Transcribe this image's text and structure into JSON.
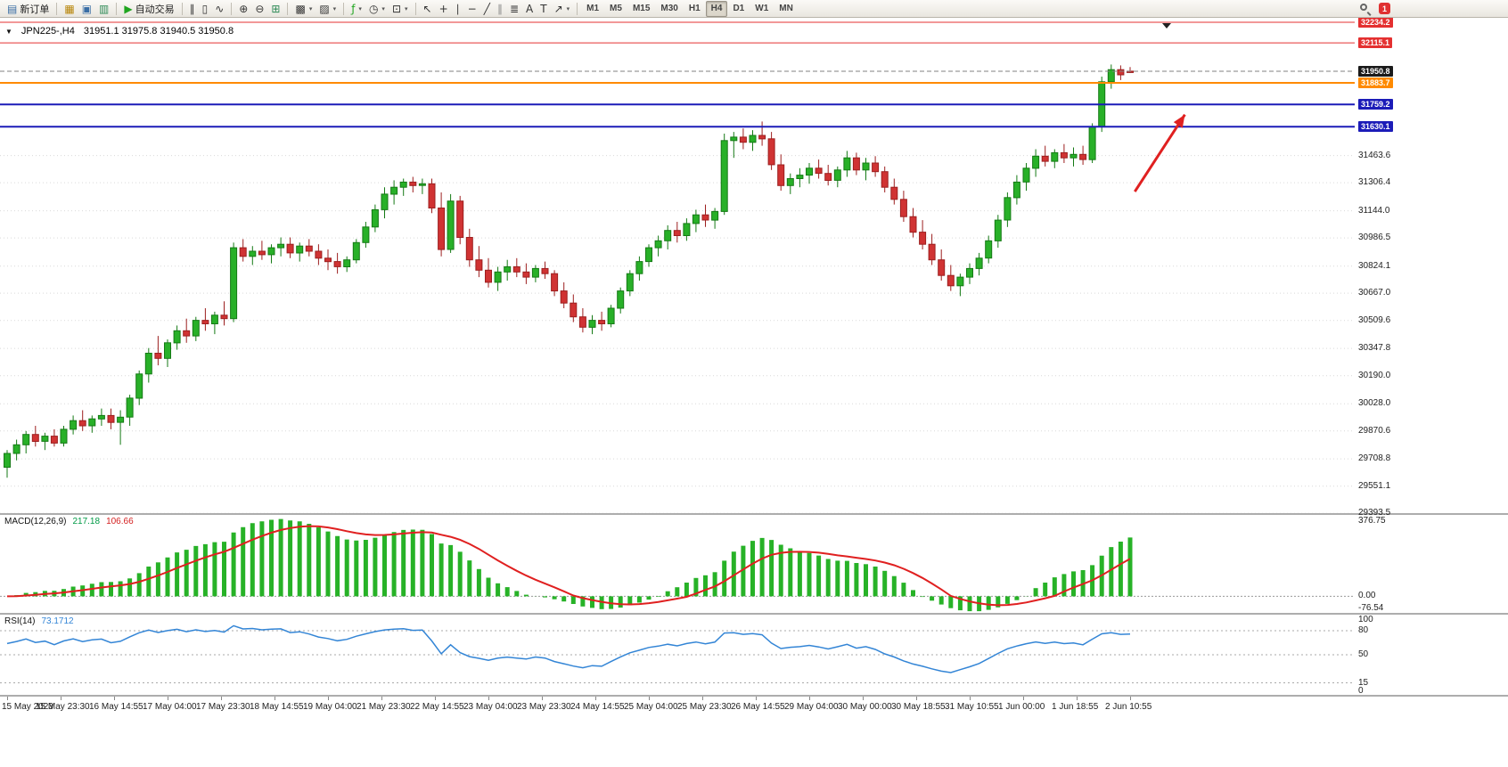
{
  "toolbar": {
    "notification_badge": "1",
    "groups": [
      {
        "name": "trade",
        "items": [
          {
            "name": "new-order-button",
            "glyph": "▤",
            "glyph_color": "#3a6ea5",
            "label": "新订单"
          }
        ]
      },
      {
        "name": "windows",
        "items": [
          {
            "name": "charts-button",
            "glyph": "▦",
            "glyph_color": "#b8860b"
          },
          {
            "name": "profiles-button",
            "glyph": "▣",
            "glyph_color": "#3a6ea5"
          },
          {
            "name": "refresh-button",
            "glyph": "▥",
            "glyph_color": "#2e8b57"
          }
        ]
      },
      {
        "name": "autotrading",
        "items": [
          {
            "name": "autotrading-button",
            "glyph": "▶",
            "glyph_color": "#1fa51f",
            "label": "自动交易"
          }
        ]
      },
      {
        "name": "chart-type",
        "items": [
          {
            "name": "bar-chart-button",
            "glyph": "∥",
            "glyph_color": "#333333"
          },
          {
            "name": "candlestick-button",
            "glyph": "▯",
            "glyph_color": "#333333"
          },
          {
            "name": "line-chart-button",
            "glyph": "∿",
            "glyph_color": "#333333"
          }
        ]
      },
      {
        "name": "zoom",
        "items": [
          {
            "name": "zoom-in-button",
            "glyph": "⊕",
            "glyph_color": "#333333"
          },
          {
            "name": "zoom-out-button",
            "glyph": "⊖",
            "glyph_color": "#333333"
          },
          {
            "name": "tile-windows-button",
            "glyph": "⊞",
            "glyph_color": "#2e8b57"
          }
        ]
      },
      {
        "name": "chart-management",
        "items": [
          {
            "name": "new-chart-button",
            "glyph": "▩",
            "glyph_color": "#333333",
            "dropdown": true
          },
          {
            "name": "chart-profiles-button",
            "glyph": "▨",
            "glyph_color": "#333333",
            "dropdown": true
          }
        ]
      },
      {
        "name": "indicator-tools",
        "items": [
          {
            "name": "indicators-button",
            "glyph": "ƒ",
            "glyph_color": "#1fa51f",
            "dropdown": true
          },
          {
            "name": "periods-button",
            "glyph": "◷",
            "glyph_color": "#333333",
            "dropdown": true
          },
          {
            "name": "templates-button",
            "glyph": "⊡",
            "glyph_color": "#333333",
            "dropdown": true
          }
        ]
      },
      {
        "name": "drawing-tools",
        "items": [
          {
            "name": "cursor-button",
            "glyph": "↖",
            "glyph_color": "#333333"
          },
          {
            "name": "crosshair-button",
            "glyph": "+",
            "glyph_color": "#333333"
          },
          {
            "name": "vertical-line-button",
            "glyph": "∣",
            "glyph_color": "#333333"
          },
          {
            "name": "horizontal-line-button",
            "glyph": "−",
            "glyph_color": "#333333"
          },
          {
            "name": "trendline-button",
            "glyph": "╱",
            "glyph_color": "#333333"
          },
          {
            "name": "channel-button",
            "glyph": "∥",
            "glyph_color": "#888888"
          },
          {
            "name": "fibonacci-button",
            "glyph": "≣",
            "glyph_color": "#333333"
          },
          {
            "name": "text-button",
            "glyph": "A",
            "glyph_color": "#333333"
          },
          {
            "name": "label-button",
            "glyph": "T",
            "glyph_color": "#333333"
          },
          {
            "name": "arrows-button",
            "glyph": "↗",
            "glyph_color": "#333333",
            "dropdown": true
          }
        ]
      },
      {
        "name": "timeframes",
        "items": [
          {
            "name": "timeframe-m1",
            "label": "M1"
          },
          {
            "name": "timeframe-m5",
            "label": "M5"
          },
          {
            "name": "timeframe-m15",
            "label": "M15"
          },
          {
            "name": "timeframe-m30",
            "label": "M30"
          },
          {
            "name": "timeframe-h1",
            "label": "H1"
          },
          {
            "name": "timeframe-h4",
            "label": "H4",
            "active": true
          },
          {
            "name": "timeframe-d1",
            "label": "D1"
          },
          {
            "name": "timeframe-w1",
            "label": "W1"
          },
          {
            "name": "timeframe-mn",
            "label": "MN"
          }
        ]
      }
    ]
  },
  "chart": {
    "title": "JPN225-,H4",
    "ohlc": "31951.1 31975.8 31940.5 31950.8"
  },
  "indicators": {
    "macd": {
      "label": "MACD(12,26,9)",
      "value_main": "217.18",
      "value_signal": "106.66",
      "axis": [
        376.75,
        0,
        -76.54
      ]
    },
    "rsi": {
      "label": "RSI(14)",
      "value": "73.1712",
      "axis": [
        100,
        80,
        50,
        15,
        0
      ],
      "levels": [
        80,
        50,
        15
      ]
    }
  },
  "chart_data": {
    "type": "candlestick",
    "symbol": "JPN225-",
    "timeframe": "H4",
    "title": "JPN225-,H4 31951.1 31975.8 31940.5 31950.8",
    "ylim": [
      29395,
      32260
    ],
    "price_ticks": [
      31463.6,
      31306.4,
      31144.0,
      30986.5,
      30824.1,
      30667.0,
      30509.6,
      30347.8,
      30190.0,
      30028.0,
      29870.6,
      29708.8,
      29551.1,
      29393.5
    ],
    "x_labels": [
      "15 May 2023",
      "15 May 23:30",
      "16 May 14:55",
      "17 May 04:00",
      "17 May 23:30",
      "18 May 14:55",
      "19 May 04:00",
      "21 May 23:30",
      "22 May 14:55",
      "23 May 04:00",
      "23 May 23:30",
      "24 May 14:55",
      "25 May 04:00",
      "25 May 23:30",
      "26 May 14:55",
      "29 May 04:00",
      "30 May 00:00",
      "30 May 18:55",
      "31 May 10:55",
      "1 Jun 00:00",
      "1 Jun 18:55",
      "2 Jun 10:55"
    ],
    "candles_ohlc": [
      [
        29660,
        29760,
        29600,
        29740
      ],
      [
        29740,
        29820,
        29700,
        29790
      ],
      [
        29790,
        29870,
        29740,
        29850
      ],
      [
        29850,
        29900,
        29780,
        29810
      ],
      [
        29810,
        29860,
        29760,
        29840
      ],
      [
        29840,
        29880,
        29780,
        29800
      ],
      [
        29800,
        29900,
        29780,
        29880
      ],
      [
        29880,
        29960,
        29850,
        29930
      ],
      [
        29930,
        29990,
        29870,
        29900
      ],
      [
        29900,
        29960,
        29860,
        29940
      ],
      [
        29940,
        30000,
        29900,
        29960
      ],
      [
        29960,
        30000,
        29880,
        29920
      ],
      [
        29920,
        29990,
        29790,
        29950
      ],
      [
        29950,
        30080,
        29900,
        30060
      ],
      [
        30060,
        30220,
        30020,
        30200
      ],
      [
        30200,
        30350,
        30150,
        30320
      ],
      [
        30320,
        30420,
        30250,
        30290
      ],
      [
        30290,
        30400,
        30240,
        30380
      ],
      [
        30380,
        30480,
        30340,
        30450
      ],
      [
        30450,
        30520,
        30380,
        30420
      ],
      [
        30420,
        30530,
        30390,
        30510
      ],
      [
        30510,
        30580,
        30450,
        30490
      ],
      [
        30490,
        30560,
        30430,
        30540
      ],
      [
        30540,
        30620,
        30480,
        30520
      ],
      [
        30520,
        30960,
        30500,
        30930
      ],
      [
        30930,
        30980,
        30850,
        30880
      ],
      [
        30880,
        30940,
        30830,
        30910
      ],
      [
        30910,
        30970,
        30860,
        30890
      ],
      [
        30890,
        30950,
        30840,
        30930
      ],
      [
        30930,
        30990,
        30880,
        30950
      ],
      [
        30950,
        30990,
        30870,
        30900
      ],
      [
        30900,
        30960,
        30850,
        30940
      ],
      [
        30940,
        30980,
        30880,
        30910
      ],
      [
        30910,
        30950,
        30830,
        30870
      ],
      [
        30870,
        30920,
        30800,
        30850
      ],
      [
        30850,
        30900,
        30780,
        30820
      ],
      [
        30820,
        30880,
        30790,
        30860
      ],
      [
        30860,
        30980,
        30840,
        30960
      ],
      [
        30960,
        31080,
        30930,
        31050
      ],
      [
        31050,
        31180,
        31020,
        31150
      ],
      [
        31150,
        31280,
        31100,
        31240
      ],
      [
        31240,
        31320,
        31180,
        31280
      ],
      [
        31280,
        31330,
        31230,
        31310
      ],
      [
        31310,
        31340,
        31250,
        31290
      ],
      [
        31290,
        31330,
        31240,
        31300
      ],
      [
        31300,
        31330,
        31130,
        31160
      ],
      [
        31160,
        31250,
        30880,
        30920
      ],
      [
        30920,
        31240,
        30900,
        31200
      ],
      [
        31200,
        31230,
        30950,
        30990
      ],
      [
        30990,
        31040,
        30820,
        30860
      ],
      [
        30860,
        30940,
        30760,
        30800
      ],
      [
        30800,
        30870,
        30700,
        30730
      ],
      [
        30730,
        30820,
        30680,
        30790
      ],
      [
        30790,
        30860,
        30740,
        30820
      ],
      [
        30820,
        30870,
        30760,
        30790
      ],
      [
        30790,
        30840,
        30720,
        30760
      ],
      [
        30760,
        30830,
        30730,
        30810
      ],
      [
        30810,
        30850,
        30750,
        30780
      ],
      [
        30780,
        30800,
        30650,
        30680
      ],
      [
        30680,
        30730,
        30580,
        30610
      ],
      [
        30610,
        30660,
        30500,
        30530
      ],
      [
        30530,
        30580,
        30440,
        30470
      ],
      [
        30470,
        30540,
        30430,
        30510
      ],
      [
        30510,
        30560,
        30450,
        30490
      ],
      [
        30490,
        30600,
        30470,
        30580
      ],
      [
        30580,
        30700,
        30550,
        30680
      ],
      [
        30680,
        30800,
        30650,
        30780
      ],
      [
        30780,
        30880,
        30740,
        30850
      ],
      [
        30850,
        30950,
        30820,
        30930
      ],
      [
        30930,
        31000,
        30880,
        30970
      ],
      [
        30970,
        31060,
        30920,
        31030
      ],
      [
        31030,
        31080,
        30960,
        31000
      ],
      [
        31000,
        31100,
        30970,
        31070
      ],
      [
        31070,
        31150,
        31020,
        31120
      ],
      [
        31120,
        31180,
        31050,
        31090
      ],
      [
        31090,
        31160,
        31040,
        31140
      ],
      [
        31140,
        31590,
        31120,
        31550
      ],
      [
        31550,
        31600,
        31450,
        31570
      ],
      [
        31570,
        31620,
        31500,
        31540
      ],
      [
        31540,
        31610,
        31490,
        31580
      ],
      [
        31580,
        31660,
        31520,
        31560
      ],
      [
        31560,
        31600,
        31380,
        31410
      ],
      [
        31410,
        31470,
        31260,
        31290
      ],
      [
        31290,
        31360,
        31240,
        31330
      ],
      [
        31330,
        31390,
        31280,
        31350
      ],
      [
        31350,
        31420,
        31300,
        31390
      ],
      [
        31390,
        31440,
        31330,
        31360
      ],
      [
        31360,
        31410,
        31290,
        31320
      ],
      [
        31320,
        31400,
        31280,
        31380
      ],
      [
        31380,
        31490,
        31340,
        31450
      ],
      [
        31450,
        31480,
        31350,
        31380
      ],
      [
        31380,
        31450,
        31320,
        31420
      ],
      [
        31420,
        31460,
        31340,
        31370
      ],
      [
        31370,
        31400,
        31250,
        31280
      ],
      [
        31280,
        31330,
        31180,
        31210
      ],
      [
        31210,
        31260,
        31080,
        31110
      ],
      [
        31110,
        31160,
        30990,
        31020
      ],
      [
        31020,
        31090,
        30920,
        30950
      ],
      [
        30950,
        31010,
        30830,
        30860
      ],
      [
        30860,
        30920,
        30740,
        30770
      ],
      [
        30770,
        30830,
        30680,
        30710
      ],
      [
        30710,
        30780,
        30650,
        30760
      ],
      [
        30760,
        30840,
        30720,
        30810
      ],
      [
        30810,
        30900,
        30770,
        30870
      ],
      [
        30870,
        31000,
        30840,
        30970
      ],
      [
        30970,
        31120,
        30930,
        31090
      ],
      [
        31090,
        31250,
        31050,
        31220
      ],
      [
        31220,
        31350,
        31180,
        31310
      ],
      [
        31310,
        31420,
        31260,
        31390
      ],
      [
        31390,
        31500,
        31340,
        31460
      ],
      [
        31460,
        31520,
        31400,
        31430
      ],
      [
        31430,
        31500,
        31390,
        31480
      ],
      [
        31480,
        31530,
        31420,
        31450
      ],
      [
        31450,
        31510,
        31400,
        31470
      ],
      [
        31470,
        31520,
        31410,
        31440
      ],
      [
        31440,
        31650,
        31420,
        31630
      ],
      [
        31630,
        31920,
        31600,
        31890
      ],
      [
        31890,
        31990,
        31850,
        31960
      ],
      [
        31960,
        31985,
        31900,
        31930
      ],
      [
        31951.1,
        31975.8,
        31940.5,
        31950.8
      ]
    ],
    "horizontal_lines": [
      {
        "price": 32234.2,
        "color": "#e43030",
        "width": 1
      },
      {
        "price": 32115.1,
        "color": "#e43030",
        "width": 1
      },
      {
        "price": 31950.8,
        "color": "#808080",
        "width": 1,
        "style": "dashed",
        "label_bg": "#1a1a1a",
        "role": "bid-price"
      },
      {
        "price": 31883.7,
        "color": "#ff8a00",
        "width": 2
      },
      {
        "price": 31759.2,
        "color": "#1c1cb8",
        "width": 2
      },
      {
        "price": 31630.1,
        "color": "#1c1cb8",
        "width": 2
      }
    ],
    "arrow": {
      "bar1": 119.5,
      "price1": 31255,
      "bar2": 124.8,
      "price2": 31700,
      "color": "#e02020"
    },
    "colors": {
      "bull": "#28b028",
      "bull_border": "#157a15",
      "bear": "#d03333",
      "bear_border": "#9c1f1f",
      "macd_hist": "#27b227",
      "macd_signal": "#e02020",
      "rsi": "#3385d6",
      "grid": "#d9d9d9"
    },
    "indicator_values": {
      "macd_main": 217.18,
      "macd_signal": 106.66,
      "macd_axis_max": 376.75,
      "macd_axis_min": -76.54,
      "rsi": 73.1712
    }
  }
}
